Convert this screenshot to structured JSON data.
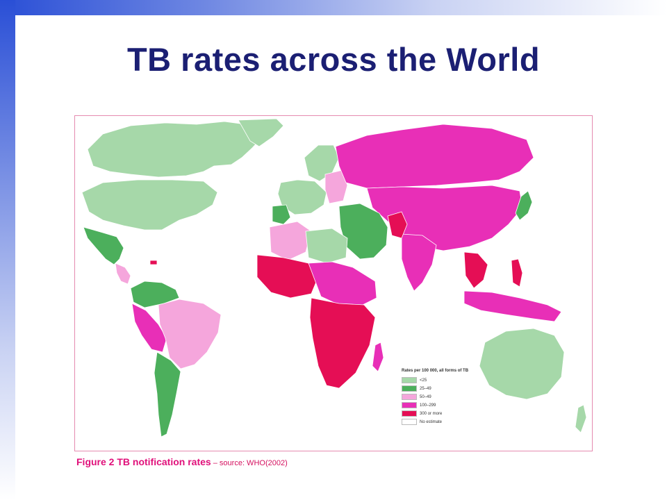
{
  "slide": {
    "title": "TB rates across the World"
  },
  "caption": {
    "figure": "Figure 2 TB notification rates",
    "source": " – source: WHO(2002)"
  },
  "legend": {
    "title": "Rates per 100 000, all forms of TB",
    "items": [
      {
        "label": "<25",
        "color": "#a6d8a9"
      },
      {
        "label": "25–49",
        "color": "#4caf5c"
      },
      {
        "label": "50–49",
        "color": "#f5a6dc"
      },
      {
        "label": "100–299",
        "color": "#e82fb7"
      },
      {
        "label": "300 or more",
        "color": "#e50e55"
      },
      {
        "label": "No estimate",
        "color": "#ffffff"
      }
    ]
  },
  "colors": {
    "low": "#a6d8a9",
    "low_mid": "#4caf5c",
    "mid": "#f5a6dc",
    "high": "#e82fb7",
    "very_high": "#e50e55",
    "title": "#1b1f73",
    "frame": "#e58ab0",
    "caption": "#e0107a"
  }
}
